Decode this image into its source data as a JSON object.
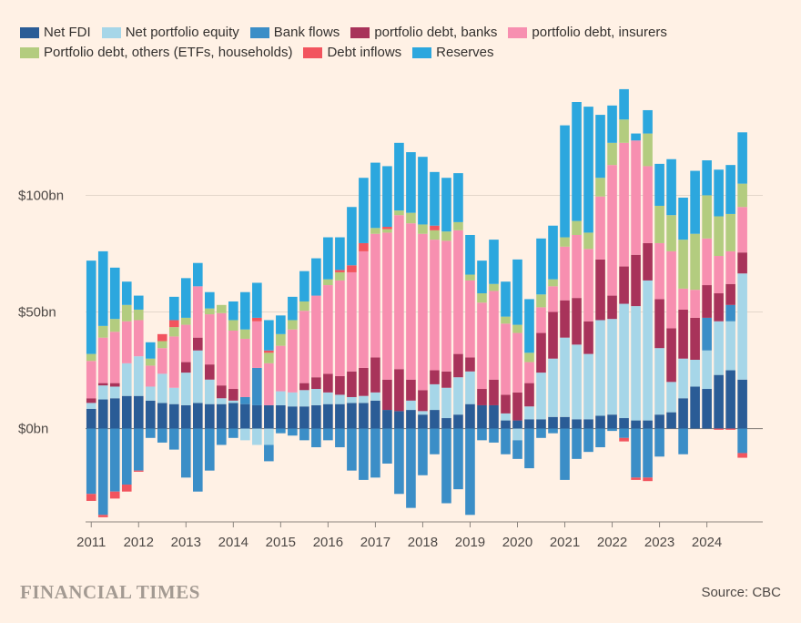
{
  "chart_data": {
    "type": "bar",
    "stacked": true,
    "x_start": 2011.0,
    "x_step": 0.25,
    "ylim": [
      -40,
      140
    ],
    "y_ticks": [
      0,
      50,
      100
    ],
    "y_tick_labels": [
      "$0bn",
      "$50bn",
      "$100bn"
    ],
    "x_ticks": [
      2011,
      2012,
      2013,
      2014,
      2015,
      2016,
      2017,
      2018,
      2019,
      2020,
      2021,
      2022,
      2023,
      2024
    ],
    "x_tick_labels": [
      "2011",
      "2012",
      "2013",
      "2014",
      "2015",
      "2016",
      "2017",
      "2018",
      "2019",
      "2020",
      "2021",
      "2022",
      "2023",
      "2024"
    ],
    "grid": true,
    "legend_position": "top",
    "series": [
      {
        "name": "Net FDI",
        "color": "#2a5c96",
        "values": [
          8.5,
          12.5,
          13,
          14,
          14,
          12,
          11,
          10.5,
          10,
          11,
          10.5,
          10.5,
          11,
          10.5,
          10,
          10,
          10,
          9.5,
          9.5,
          10,
          10.5,
          10.5,
          11,
          11,
          12,
          8,
          7.5,
          8,
          6,
          8,
          4.5,
          6,
          10.5,
          10,
          10,
          3.5,
          3.5,
          4,
          4,
          5,
          5,
          4,
          4,
          5.5,
          6,
          4.5,
          3.5,
          3.5,
          6,
          7,
          13,
          18,
          17,
          23,
          25,
          21
        ]
      },
      {
        "name": "Net portfolio equity",
        "color": "#a6d6e8",
        "values": [
          2.5,
          6,
          5,
          14,
          17,
          6,
          12.5,
          7,
          14,
          22.5,
          10.5,
          2.5,
          1,
          -5,
          -7,
          -7,
          6,
          6,
          7,
          7,
          5,
          4,
          2.5,
          3,
          3.5,
          0,
          0,
          4,
          1.5,
          11,
          13,
          16,
          14,
          0,
          0,
          3,
          -5,
          5.5,
          20,
          25,
          34,
          32,
          28,
          41,
          41,
          49,
          49,
          60,
          28.5,
          13,
          17,
          11.5,
          16.5,
          23,
          21,
          45.5
        ]
      },
      {
        "name": "Bank flows",
        "color": "#3b8ec7",
        "values": [
          -28,
          -37,
          -27,
          -24,
          -18,
          -4,
          -6,
          -9,
          -21,
          -27,
          -18,
          -7,
          -4,
          3,
          16,
          -7,
          -2,
          -3,
          -5,
          -8,
          -5,
          -8,
          -18,
          -22,
          -21,
          -15,
          -28,
          -34,
          -20,
          -11,
          -32,
          -26,
          -37,
          -5,
          -6,
          -11,
          -8,
          -17,
          -4,
          -2,
          -22,
          -13,
          -10,
          -8,
          -1,
          -4,
          -21,
          -21,
          -12,
          0,
          -11,
          0,
          14,
          0,
          7,
          -10.5
        ]
      },
      {
        "name": "portfolio debt, banks",
        "color": "#a8335a",
        "values": [
          2,
          1,
          1.5,
          0,
          0,
          0,
          0,
          0,
          4.5,
          5.5,
          6.5,
          5.5,
          5,
          0,
          0,
          0,
          0,
          0,
          3,
          5,
          8,
          8,
          11,
          12,
          15,
          13,
          18,
          9,
          9,
          6,
          7,
          10,
          6,
          7,
          11,
          8,
          12,
          10,
          17,
          20,
          16,
          20,
          14,
          26,
          10,
          16,
          22,
          16,
          21,
          23,
          21,
          18,
          14,
          12,
          9,
          9
        ]
      },
      {
        "name": "portfolio debt, insurers",
        "color": "#f78fb0",
        "values": [
          16,
          19.5,
          22,
          18,
          15.5,
          9,
          11,
          22,
          16,
          22,
          21.5,
          31,
          25,
          25,
          20,
          18,
          19.5,
          27,
          31,
          35,
          38,
          41,
          42.5,
          50,
          53,
          63,
          66,
          67,
          67,
          56,
          56,
          53,
          33,
          37,
          38,
          30.5,
          25.5,
          9,
          11,
          11,
          23,
          27,
          31,
          27,
          56,
          53,
          49,
          33,
          24,
          33,
          9,
          12,
          20,
          16,
          14,
          19.5
        ]
      },
      {
        "name": "Portfolio debt, others (ETFs, households)",
        "color": "#b3cc7f",
        "values": [
          3,
          5,
          5.5,
          7,
          4.5,
          3,
          3,
          4,
          3,
          0,
          2.5,
          3.5,
          4.5,
          4,
          0,
          4.5,
          5,
          4,
          4,
          0,
          2.5,
          3.5,
          0,
          0,
          2.5,
          1.5,
          2,
          4.5,
          4,
          4,
          4,
          3.5,
          2.5,
          4,
          3,
          3,
          3.5,
          4,
          5.5,
          3,
          4,
          6,
          7,
          8,
          9.5,
          10,
          0,
          14,
          16,
          15.5,
          21,
          24,
          18.5,
          17,
          16,
          10
        ]
      },
      {
        "name": "Debt inflows",
        "color": "#f2545e",
        "values": [
          -3,
          -1,
          -3,
          -3,
          -0.5,
          0,
          3,
          3,
          0,
          0,
          0,
          0,
          0,
          0,
          1.5,
          1,
          0,
          0,
          0,
          0,
          0,
          1,
          3,
          3.5,
          0,
          1,
          0,
          0,
          0,
          2,
          0,
          0,
          0,
          0,
          0,
          0,
          0,
          0,
          0,
          0,
          0,
          0,
          0,
          0,
          0,
          -1.5,
          -1,
          -1.5,
          0,
          0,
          0,
          0,
          0,
          -0.5,
          -0.5,
          -2
        ]
      },
      {
        "name": "Reserves",
        "color": "#2ca7de",
        "values": [
          40,
          32,
          22,
          10,
          6,
          7,
          0,
          10,
          17,
          10,
          7,
          0,
          8,
          16,
          15,
          13,
          8,
          10,
          13,
          16,
          18,
          14,
          25,
          28,
          28,
          26,
          29,
          26,
          29,
          23,
          23,
          21,
          17,
          14,
          19,
          15,
          28,
          23,
          24,
          23,
          48,
          51,
          54,
          27,
          16,
          13,
          3,
          10,
          18,
          24,
          18,
          27,
          15,
          20,
          21,
          22
        ]
      }
    ]
  },
  "footer": {
    "brand": "FINANCIAL TIMES",
    "source": "Source: CBC"
  }
}
